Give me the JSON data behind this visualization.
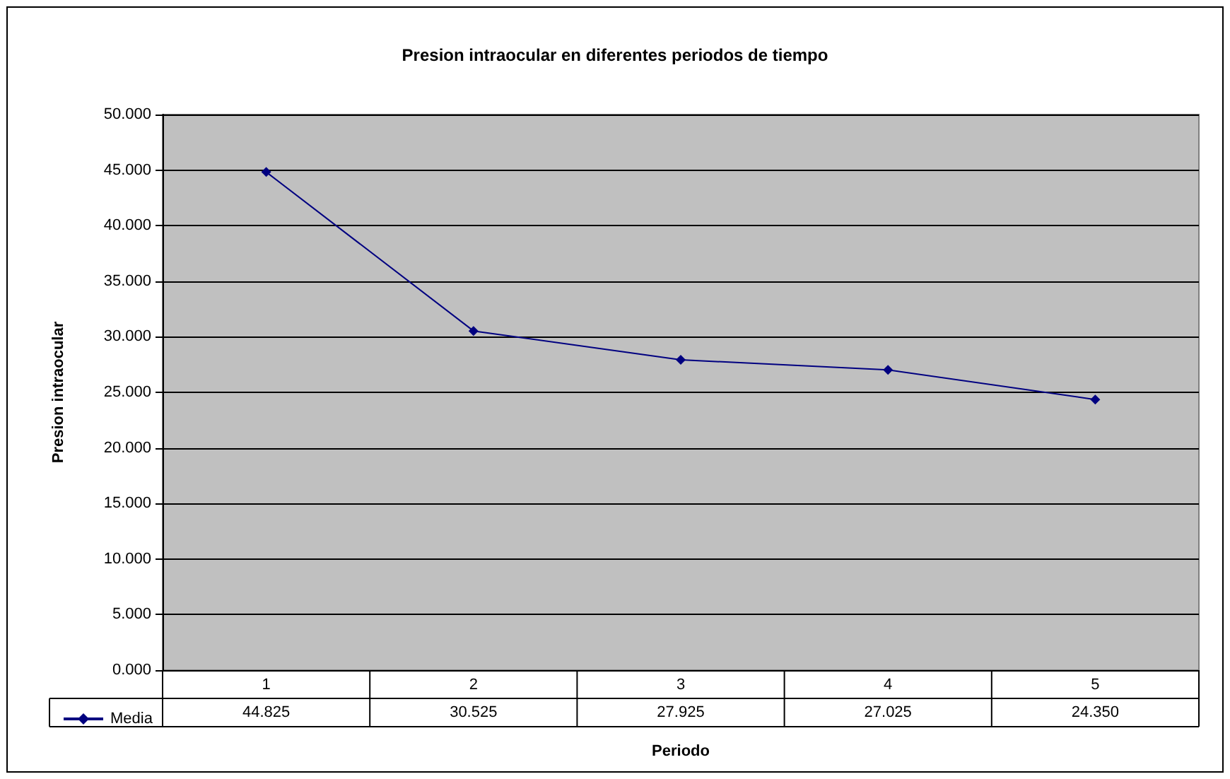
{
  "chart_data": {
    "type": "line",
    "title": "Presion intraocular en diferentes periodos de tiempo",
    "xlabel": "Periodo",
    "ylabel": "Presion intraocular",
    "categories": [
      "1",
      "2",
      "3",
      "4",
      "5"
    ],
    "series": [
      {
        "name": "Media",
        "color": "#000080",
        "values": [
          44.825,
          30.525,
          27.925,
          27.025,
          24.35
        ],
        "value_labels": [
          "44.825",
          "30.525",
          "27.925",
          "27.025",
          "24.350"
        ]
      }
    ],
    "ylim": [
      0,
      50
    ],
    "yticks": [
      {
        "value": 0,
        "label": "0.000"
      },
      {
        "value": 5,
        "label": "5.000"
      },
      {
        "value": 10,
        "label": "10.000"
      },
      {
        "value": 15,
        "label": "15.000"
      },
      {
        "value": 20,
        "label": "20.000"
      },
      {
        "value": 25,
        "label": "25.000"
      },
      {
        "value": 30,
        "label": "30.000"
      },
      {
        "value": 35,
        "label": "35.000"
      },
      {
        "value": 40,
        "label": "40.000"
      },
      {
        "value": 45,
        "label": "45.000"
      },
      {
        "value": 50,
        "label": "50.000"
      }
    ],
    "grid": "y",
    "legend": "bottom left",
    "marker": "diamond",
    "line_style": "solid"
  }
}
